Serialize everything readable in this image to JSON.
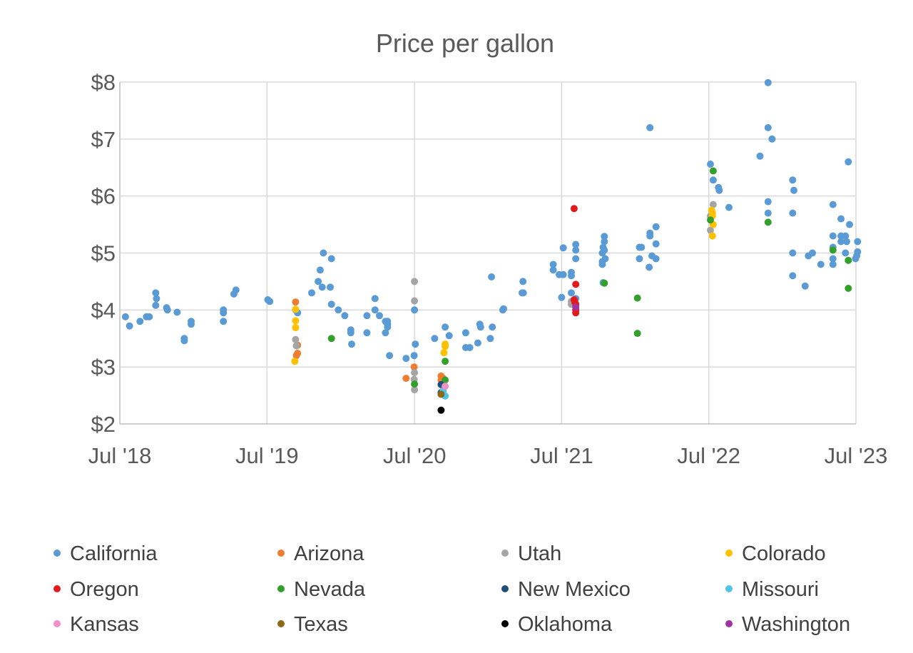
{
  "chart_data": {
    "type": "scatter",
    "title": "Price per gallon",
    "xlabel": "",
    "ylabel": "",
    "x_axis": {
      "type": "date",
      "min": "2018-07-01",
      "max": "2023-07-01",
      "tick_labels": [
        "Jul '18",
        "Jul '19",
        "Jul '20",
        "Jul '21",
        "Jul '22",
        "Jul '23"
      ],
      "tick_dates": [
        "2018-07-01",
        "2019-07-01",
        "2020-07-01",
        "2021-07-01",
        "2022-07-01",
        "2023-07-01"
      ]
    },
    "y_axis": {
      "min": 2,
      "max": 8,
      "ticks": [
        2,
        3,
        4,
        5,
        6,
        7,
        8
      ],
      "tick_labels": [
        "$2",
        "$3",
        "$4",
        "$5",
        "$6",
        "$7",
        "$8"
      ]
    },
    "grid": true,
    "legend": "bottom",
    "series": [
      {
        "name": "California",
        "color": "#5B9BD5",
        "points": [
          [
            "2018-07-15",
            3.88
          ],
          [
            "2018-07-25",
            3.72
          ],
          [
            "2018-08-20",
            3.8
          ],
          [
            "2018-09-05",
            3.88
          ],
          [
            "2018-09-12",
            3.88
          ],
          [
            "2018-09-28",
            4.3
          ],
          [
            "2018-09-30",
            4.2
          ],
          [
            "2018-09-28",
            4.08
          ],
          [
            "2018-10-25",
            4.04
          ],
          [
            "2018-10-27",
            4.0
          ],
          [
            "2018-11-20",
            3.96
          ],
          [
            "2018-12-08",
            3.5
          ],
          [
            "2018-12-08",
            3.46
          ],
          [
            "2018-12-25",
            3.8
          ],
          [
            "2018-12-25",
            3.75
          ],
          [
            "2019-03-15",
            3.8
          ],
          [
            "2019-03-15",
            3.95
          ],
          [
            "2019-03-15",
            4.0
          ],
          [
            "2019-04-10",
            4.28
          ],
          [
            "2019-04-15",
            4.35
          ],
          [
            "2019-07-03",
            4.18
          ],
          [
            "2019-07-08",
            4.15
          ],
          [
            "2019-09-10",
            4.0
          ],
          [
            "2019-09-15",
            3.95
          ],
          [
            "2019-10-20",
            4.3
          ],
          [
            "2019-11-05",
            4.5
          ],
          [
            "2019-11-10",
            4.7
          ],
          [
            "2019-11-15",
            4.4
          ],
          [
            "2019-11-18",
            5.0
          ],
          [
            "2019-12-05",
            4.4
          ],
          [
            "2019-12-08",
            4.9
          ],
          [
            "2019-12-08",
            4.1
          ],
          [
            "2019-12-25",
            4.0
          ],
          [
            "2020-01-10",
            3.9
          ],
          [
            "2020-01-25",
            3.65
          ],
          [
            "2020-01-25",
            3.6
          ],
          [
            "2020-01-27",
            3.4
          ],
          [
            "2020-03-05",
            3.6
          ],
          [
            "2020-03-05",
            3.9
          ],
          [
            "2020-03-25",
            4.2
          ],
          [
            "2020-03-25",
            4.0
          ],
          [
            "2020-04-05",
            3.9
          ],
          [
            "2020-04-20",
            3.8
          ],
          [
            "2020-04-25",
            3.8
          ],
          [
            "2020-04-20",
            3.6
          ],
          [
            "2020-04-25",
            3.7
          ],
          [
            "2020-04-25",
            3.75
          ],
          [
            "2020-04-30",
            3.2
          ],
          [
            "2020-06-10",
            3.15
          ],
          [
            "2020-06-30",
            3.2
          ],
          [
            "2020-07-01",
            4.0
          ],
          [
            "2020-07-03",
            3.4
          ],
          [
            "2020-08-20",
            3.5
          ],
          [
            "2020-09-15",
            3.7
          ],
          [
            "2020-09-25",
            3.55
          ],
          [
            "2020-11-05",
            3.6
          ],
          [
            "2020-11-05",
            3.34
          ],
          [
            "2020-11-15",
            3.34
          ],
          [
            "2020-12-05",
            3.42
          ],
          [
            "2020-12-10",
            3.75
          ],
          [
            "2020-12-12",
            3.7
          ],
          [
            "2021-01-05",
            3.5
          ],
          [
            "2021-01-08",
            4.58
          ],
          [
            "2021-01-10",
            3.7
          ],
          [
            "2021-02-05",
            4.0
          ],
          [
            "2021-02-07",
            4.02
          ],
          [
            "2021-03-25",
            4.3
          ],
          [
            "2021-03-27",
            4.5
          ],
          [
            "2021-03-28",
            4.3
          ],
          [
            "2021-06-10",
            4.8
          ],
          [
            "2021-06-10",
            4.7
          ],
          [
            "2021-06-25",
            4.62
          ],
          [
            "2021-07-05",
            5.09
          ],
          [
            "2021-07-05",
            4.62
          ],
          [
            "2021-07-01",
            4.22
          ],
          [
            "2021-07-25",
            4.3
          ],
          [
            "2021-07-25",
            4.6
          ],
          [
            "2021-07-25",
            4.66
          ],
          [
            "2021-08-05",
            5.15
          ],
          [
            "2021-08-05",
            5.05
          ],
          [
            "2021-08-05",
            4.9
          ],
          [
            "2021-08-05",
            4.2
          ],
          [
            "2021-10-15",
            5.29
          ],
          [
            "2021-10-15",
            5.2
          ],
          [
            "2021-10-12",
            5.1
          ],
          [
            "2021-10-15",
            5.05
          ],
          [
            "2021-10-10",
            5.0
          ],
          [
            "2021-10-10",
            4.8
          ],
          [
            "2021-10-10",
            4.85
          ],
          [
            "2021-10-17",
            4.9
          ],
          [
            "2021-10-12",
            4.48
          ],
          [
            "2022-01-10",
            5.1
          ],
          [
            "2022-01-15",
            5.1
          ],
          [
            "2022-01-10",
            4.9
          ],
          [
            "2022-02-05",
            7.2
          ],
          [
            "2022-02-05",
            5.35
          ],
          [
            "2022-02-05",
            5.3
          ],
          [
            "2022-02-10",
            4.95
          ],
          [
            "2022-02-20",
            4.9
          ],
          [
            "2022-02-20",
            5.16
          ],
          [
            "2022-02-20",
            5.46
          ],
          [
            "2022-02-03",
            4.75
          ],
          [
            "2022-07-05",
            6.56
          ],
          [
            "2022-07-12",
            6.28
          ],
          [
            "2022-07-25",
            6.15
          ],
          [
            "2022-07-27",
            6.1
          ],
          [
            "2022-08-20",
            5.8
          ],
          [
            "2022-11-05",
            6.7
          ],
          [
            "2022-11-25",
            7.99
          ],
          [
            "2022-11-25",
            7.2
          ],
          [
            "2022-11-25",
            5.9
          ],
          [
            "2022-11-25",
            5.7
          ],
          [
            "2022-12-05",
            7.0
          ],
          [
            "2023-01-25",
            6.28
          ],
          [
            "2023-01-28",
            6.1
          ],
          [
            "2023-01-25",
            5.7
          ],
          [
            "2023-01-25",
            5.0
          ],
          [
            "2023-01-25",
            4.6
          ],
          [
            "2023-02-25",
            4.42
          ],
          [
            "2023-03-05",
            4.95
          ],
          [
            "2023-03-15",
            5.0
          ],
          [
            "2023-04-05",
            4.8
          ],
          [
            "2023-05-05",
            5.85
          ],
          [
            "2023-05-05",
            5.3
          ],
          [
            "2023-05-05",
            5.1
          ],
          [
            "2023-05-05",
            4.9
          ],
          [
            "2023-05-05",
            4.8
          ],
          [
            "2023-05-25",
            5.6
          ],
          [
            "2023-05-25",
            5.3
          ],
          [
            "2023-05-25",
            5.2
          ],
          [
            "2023-06-05",
            5.3
          ],
          [
            "2023-06-08",
            5.2
          ],
          [
            "2023-06-05",
            5.0
          ],
          [
            "2023-06-12",
            6.6
          ],
          [
            "2023-06-15",
            5.5
          ],
          [
            "2023-06-30",
            4.9
          ],
          [
            "2023-07-05",
            5.2
          ],
          [
            "2023-07-05",
            5.02
          ],
          [
            "2023-07-03",
            4.95
          ]
        ]
      },
      {
        "name": "Arizona",
        "color": "#ED7D31",
        "points": [
          [
            "2019-09-10",
            4.14
          ],
          [
            "2019-09-15",
            3.38
          ],
          [
            "2019-09-15",
            3.24
          ],
          [
            "2019-09-12",
            3.2
          ],
          [
            "2020-06-10",
            2.8
          ],
          [
            "2020-06-30",
            3.0
          ],
          [
            "2020-09-05",
            2.84
          ],
          [
            "2020-09-05",
            2.77
          ],
          [
            "2020-09-10",
            2.8
          ]
        ]
      },
      {
        "name": "Utah",
        "color": "#A5A5A5",
        "points": [
          [
            "2019-09-10",
            3.48
          ],
          [
            "2019-09-12",
            3.37
          ],
          [
            "2020-07-01",
            4.5
          ],
          [
            "2020-07-01",
            4.16
          ],
          [
            "2020-07-01",
            2.9
          ],
          [
            "2020-06-30",
            2.78
          ],
          [
            "2020-07-01",
            2.6
          ],
          [
            "2021-07-25",
            4.15
          ],
          [
            "2021-07-25",
            4.1
          ],
          [
            "2022-07-05",
            5.4
          ],
          [
            "2022-07-12",
            5.85
          ],
          [
            "2022-07-05",
            5.65
          ]
        ]
      },
      {
        "name": "Colorado",
        "color": "#FFC000",
        "points": [
          [
            "2019-09-10",
            4.01
          ],
          [
            "2019-09-10",
            3.81
          ],
          [
            "2019-09-10",
            3.69
          ],
          [
            "2019-09-08",
            3.1
          ],
          [
            "2020-09-15",
            3.4
          ],
          [
            "2020-09-15",
            3.36
          ],
          [
            "2020-09-12",
            3.25
          ],
          [
            "2022-07-10",
            5.7
          ],
          [
            "2022-07-10",
            5.65
          ],
          [
            "2022-07-12",
            5.5
          ],
          [
            "2022-07-10",
            5.3
          ],
          [
            "2022-07-08",
            5.75
          ]
        ]
      },
      {
        "name": "Oregon",
        "color": "#E31A1C",
        "points": [
          [
            "2021-08-01",
            5.78
          ],
          [
            "2021-08-05",
            4.45
          ],
          [
            "2021-08-01",
            4.18
          ],
          [
            "2021-08-03",
            4.13
          ],
          [
            "2021-08-05",
            4.1
          ],
          [
            "2021-08-05",
            4.0
          ],
          [
            "2021-08-05",
            3.95
          ]
        ]
      },
      {
        "name": "Nevada",
        "color": "#33A02C",
        "points": [
          [
            "2019-12-08",
            3.5
          ],
          [
            "2020-07-01",
            2.7
          ],
          [
            "2020-09-15",
            3.1
          ],
          [
            "2020-09-15",
            2.77
          ],
          [
            "2021-10-15",
            4.47
          ],
          [
            "2022-01-05",
            4.21
          ],
          [
            "2022-01-05",
            3.59
          ],
          [
            "2022-07-12",
            6.44
          ],
          [
            "2022-07-05",
            5.58
          ],
          [
            "2022-11-25",
            5.54
          ],
          [
            "2023-05-05",
            5.05
          ],
          [
            "2023-06-12",
            4.87
          ],
          [
            "2023-06-12",
            4.38
          ]
        ]
      },
      {
        "name": "New Mexico",
        "color": "#1F4E79",
        "points": [
          [
            "2020-09-05",
            2.69
          ],
          [
            "2020-09-05",
            2.55
          ]
        ]
      },
      {
        "name": "Missouri",
        "color": "#4FC3E8",
        "points": [
          [
            "2020-09-10",
            2.58
          ],
          [
            "2020-09-15",
            2.49
          ]
        ]
      },
      {
        "name": "Kansas",
        "color": "#F08FC8",
        "points": [
          [
            "2020-09-15",
            2.66
          ]
        ]
      },
      {
        "name": "Texas",
        "color": "#8B6914",
        "points": [
          [
            "2020-09-05",
            2.52
          ]
        ]
      },
      {
        "name": "Oklahoma",
        "color": "#000000",
        "points": [
          [
            "2020-09-05",
            2.24
          ]
        ]
      },
      {
        "name": "Washington",
        "color": "#A033A0",
        "points": [
          [
            "2021-08-05",
            4.05
          ]
        ]
      }
    ]
  }
}
